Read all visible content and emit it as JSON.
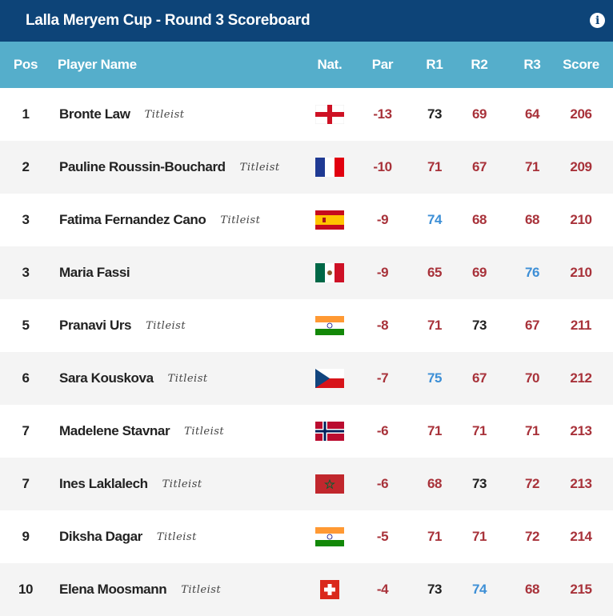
{
  "title": "Lalla Meryem Cup - Round 3 Scoreboard",
  "info_icon": "info-icon",
  "colors": {
    "title_bg": "#0d4478",
    "header_bg": "#55aecb",
    "over_par": "#a8323a",
    "under_par": "#3d8fd6"
  },
  "columns": {
    "pos": "Pos",
    "name": "Player Name",
    "nat": "Nat.",
    "par": "Par",
    "r1": "R1",
    "r2": "R2",
    "r3": "R3",
    "score": "Score"
  },
  "players": [
    {
      "pos": "1",
      "name": "Bronte Law",
      "sponsor": "Titleist",
      "flag": "england",
      "par": "-13",
      "r1": "73",
      "r2": "69",
      "r3": "64",
      "score": "206",
      "r1c": "blk",
      "r2c": "red",
      "r3c": "red"
    },
    {
      "pos": "2",
      "name": "Pauline Roussin-Bouchard",
      "sponsor": "Titleist",
      "flag": "france",
      "par": "-10",
      "r1": "71",
      "r2": "67",
      "r3": "71",
      "score": "209",
      "r1c": "red",
      "r2c": "red",
      "r3c": "red"
    },
    {
      "pos": "3",
      "name": "Fatima Fernandez Cano",
      "sponsor": "Titleist",
      "flag": "spain",
      "par": "-9",
      "r1": "74",
      "r2": "68",
      "r3": "68",
      "score": "210",
      "r1c": "blue",
      "r2c": "red",
      "r3c": "red"
    },
    {
      "pos": "3",
      "name": "Maria Fassi",
      "sponsor": "",
      "flag": "mexico",
      "par": "-9",
      "r1": "65",
      "r2": "69",
      "r3": "76",
      "score": "210",
      "r1c": "red",
      "r2c": "red",
      "r3c": "blue"
    },
    {
      "pos": "5",
      "name": "Pranavi Urs",
      "sponsor": "Titleist",
      "flag": "india",
      "par": "-8",
      "r1": "71",
      "r2": "73",
      "r3": "67",
      "score": "211",
      "r1c": "red",
      "r2c": "blk",
      "r3c": "red"
    },
    {
      "pos": "6",
      "name": "Sara Kouskova",
      "sponsor": "Titleist",
      "flag": "czech-republic",
      "par": "-7",
      "r1": "75",
      "r2": "67",
      "r3": "70",
      "score": "212",
      "r1c": "blue",
      "r2c": "red",
      "r3c": "red"
    },
    {
      "pos": "7",
      "name": "Madelene Stavnar",
      "sponsor": "Titleist",
      "flag": "norway",
      "par": "-6",
      "r1": "71",
      "r2": "71",
      "r3": "71",
      "score": "213",
      "r1c": "red",
      "r2c": "red",
      "r3c": "red"
    },
    {
      "pos": "7",
      "name": "Ines Laklalech",
      "sponsor": "Titleist",
      "flag": "morocco",
      "par": "-6",
      "r1": "68",
      "r2": "73",
      "r3": "72",
      "score": "213",
      "r1c": "red",
      "r2c": "blk",
      "r3c": "red"
    },
    {
      "pos": "9",
      "name": "Diksha Dagar",
      "sponsor": "Titleist",
      "flag": "india",
      "par": "-5",
      "r1": "71",
      "r2": "71",
      "r3": "72",
      "score": "214",
      "r1c": "red",
      "r2c": "red",
      "r3c": "red"
    },
    {
      "pos": "10",
      "name": "Elena Moosmann",
      "sponsor": "Titleist",
      "flag": "switzerland",
      "par": "-4",
      "r1": "73",
      "r2": "74",
      "r3": "68",
      "score": "215",
      "r1c": "blk",
      "r2c": "blue",
      "r3c": "red"
    }
  ]
}
